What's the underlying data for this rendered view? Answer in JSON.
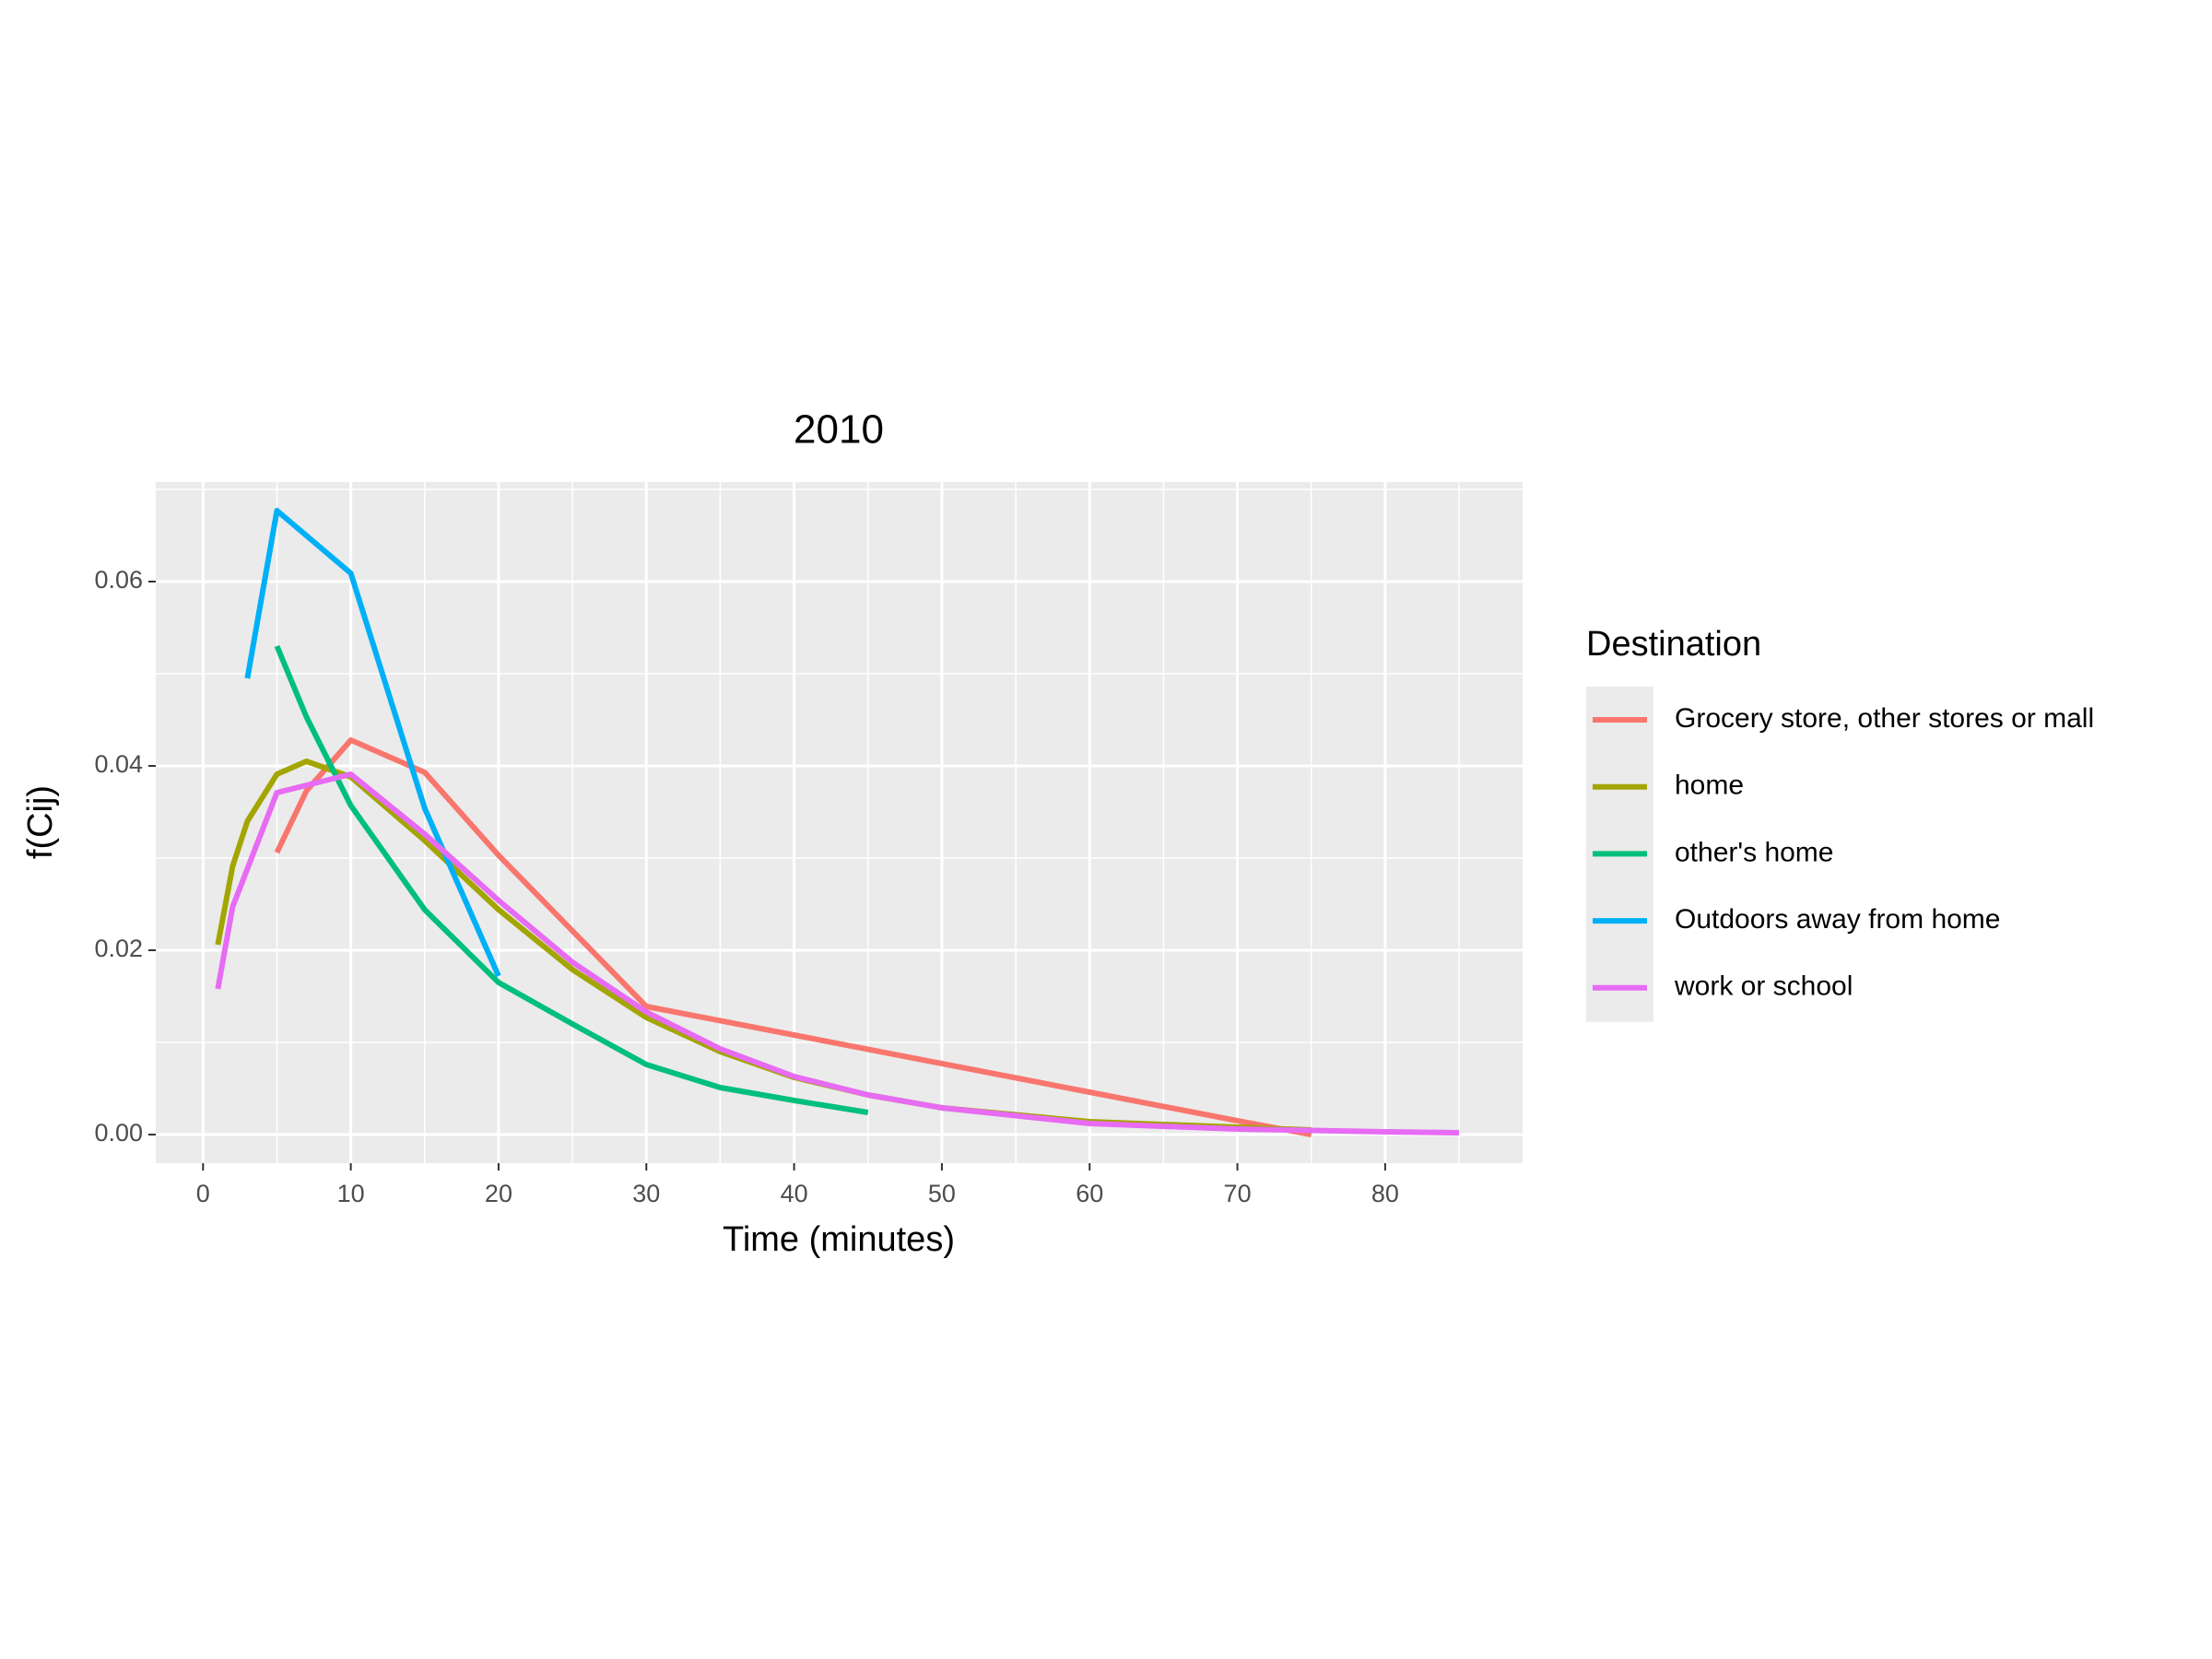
{
  "chart_data": {
    "type": "line",
    "title": "2010",
    "xlabel": "Time (minutes)",
    "ylabel": "f(Cij)",
    "legend_title": "Destination",
    "legend_position": "right",
    "grid": true,
    "xlim": [
      -3.2,
      89.3
    ],
    "ylim": [
      -0.0031,
      0.0708
    ],
    "xticks": [
      0,
      10,
      20,
      30,
      40,
      50,
      60,
      70,
      80
    ],
    "yticks": [
      {
        "value": 0,
        "label": "0.00"
      },
      0.02,
      0.04,
      0.06
    ],
    "series": [
      {
        "name": "Grocery store, other stores or mall",
        "color": "#f8766d",
        "x": [
          5,
          7,
          10,
          15,
          20,
          30,
          40,
          50,
          60,
          70,
          75
        ],
        "values": [
          0.0306,
          0.0373,
          0.0428,
          0.0393,
          0.0303,
          0.0139,
          0.0108,
          0.0077,
          0.0046,
          0.0015,
          0.0
        ]
      },
      {
        "name": "home",
        "color": "#a3a500",
        "x": [
          1,
          2,
          3,
          5,
          7,
          10,
          15,
          20,
          25,
          30,
          35,
          40,
          45,
          50,
          60,
          70,
          75
        ],
        "values": [
          0.0206,
          0.0291,
          0.034,
          0.0391,
          0.0405,
          0.0388,
          0.0319,
          0.0244,
          0.0179,
          0.0127,
          0.009,
          0.0062,
          0.0043,
          0.0029,
          0.0014,
          0.0008,
          0.0005
        ]
      },
      {
        "name": "other's home",
        "color": "#00bf7d",
        "x": [
          5,
          7,
          10,
          15,
          20,
          25,
          30,
          35,
          40,
          45
        ],
        "values": [
          0.053,
          0.0453,
          0.0357,
          0.0244,
          0.0165,
          0.012,
          0.0076,
          0.0051,
          0.0037,
          0.0024
        ]
      },
      {
        "name": "Outdoors away from home",
        "color": "#00b0f6",
        "x": [
          3,
          5,
          10,
          15,
          20
        ],
        "values": [
          0.0495,
          0.0677,
          0.0609,
          0.0354,
          0.0172
        ]
      },
      {
        "name": "work or school",
        "color": "#e76bf3",
        "x": [
          1,
          2,
          5,
          10,
          15,
          20,
          25,
          30,
          35,
          40,
          45,
          50,
          60,
          70,
          80,
          85
        ],
        "values": [
          0.0158,
          0.0247,
          0.0371,
          0.0391,
          0.0326,
          0.0254,
          0.0187,
          0.0133,
          0.0093,
          0.0063,
          0.0043,
          0.0029,
          0.0012,
          0.0006,
          0.0003,
          0.0002
        ]
      }
    ]
  }
}
